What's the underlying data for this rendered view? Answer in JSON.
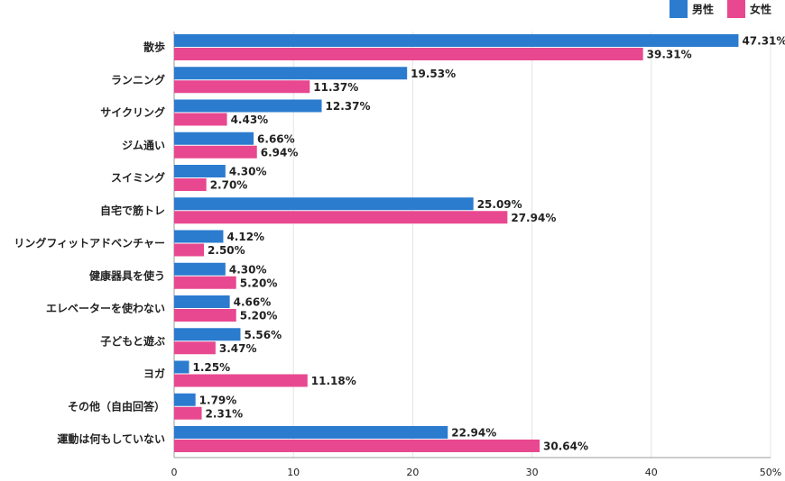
{
  "chart_data": {
    "type": "bar",
    "orientation": "horizontal",
    "categories": [
      "散歩",
      "ランニング",
      "サイクリング",
      "ジム通い",
      "スイミング",
      "自宅で筋トレ",
      "リングフィットアドベンチャー",
      "健康器具を使う",
      "エレベーターを使わない",
      "子どもと遊ぶ",
      "ヨガ",
      "その他（自由回答）",
      "運動は何もしていない"
    ],
    "series": [
      {
        "name": "男性",
        "color": "#2b7bcf",
        "values": [
          47.31,
          19.53,
          12.37,
          6.66,
          4.3,
          25.09,
          4.12,
          4.3,
          4.66,
          5.56,
          1.25,
          1.79,
          22.94
        ],
        "value_labels": [
          "47.31%",
          "19.53%",
          "12.37%",
          "6.66%",
          "4.30%",
          "25.09%",
          "4.12%",
          "4.30%",
          "4.66%",
          "5.56%",
          "1.25%",
          "1.79%",
          "22.94%"
        ]
      },
      {
        "name": "女性",
        "color": "#e8488f",
        "values": [
          39.31,
          11.37,
          4.43,
          6.94,
          2.7,
          27.94,
          2.5,
          5.2,
          5.2,
          3.47,
          11.18,
          2.31,
          30.64
        ],
        "value_labels": [
          "39.31%",
          "11.37%",
          "4.43%",
          "6.94%",
          "2.70%",
          "27.94%",
          "2.50%",
          "5.20%",
          "5.20%",
          "3.47%",
          "11.18%",
          "2.31%",
          "30.64%"
        ]
      }
    ],
    "xlim": [
      0,
      50
    ],
    "xticks": [
      0,
      10,
      20,
      30,
      40,
      {
        "value": 50,
        "label": "50%"
      }
    ],
    "grid": true,
    "legend": "top-right"
  }
}
